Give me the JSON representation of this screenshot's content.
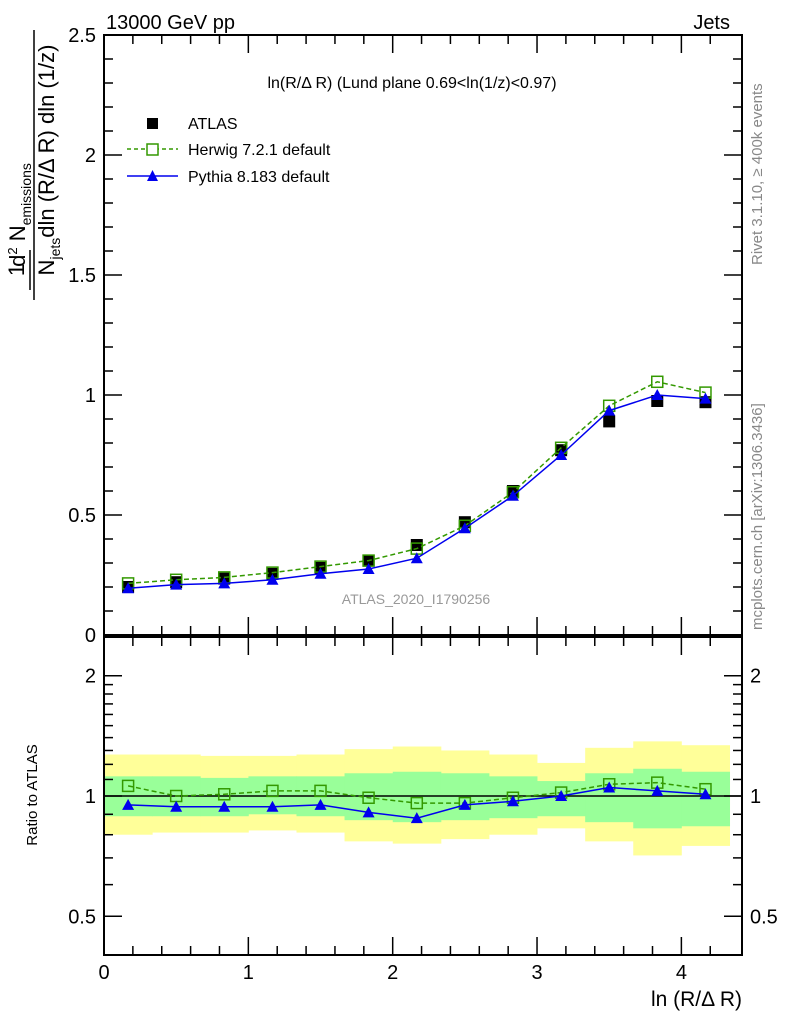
{
  "header": {
    "energy": "13000 GeV pp",
    "process": "Jets"
  },
  "side": {
    "rivet": "Rivet 3.1.10, ≥ 400k events",
    "mcplots": "mcplots.cern.ch [arXiv:1306.3436]"
  },
  "watermark": "ATLAS_2020_I1790256",
  "chart_data": [
    {
      "type": "line",
      "title": "ln(R/Δ R) (Lund plane 0.69<ln(1/z)<0.97)",
      "ylabel_parts": {
        "one": "1",
        "d2": "d",
        "two": "2",
        "N": "N",
        "emissions": "emissions",
        "Njets": "N",
        "jets": "jets",
        "denominator": "dln (R/Δ R) dln (1/z)"
      },
      "xlim": [
        0,
        4.42
      ],
      "ylim": [
        0,
        2.5
      ],
      "yticks": [
        "0",
        "0.5",
        "1",
        "1.5",
        "2",
        "2.5"
      ],
      "legend_position": "top-left",
      "x": [
        0.167,
        0.5,
        0.833,
        1.167,
        1.5,
        1.833,
        2.167,
        2.5,
        2.833,
        3.167,
        3.5,
        3.833,
        4.167
      ],
      "bin_edges": [
        0,
        4.333
      ],
      "series": [
        {
          "name": "ATLAS",
          "color": "#000000",
          "marker": "filled-square",
          "values": [
            0.2,
            0.22,
            0.235,
            0.255,
            0.28,
            0.31,
            0.375,
            0.47,
            0.6,
            0.77,
            0.89,
            0.975,
            0.97
          ]
        },
        {
          "name": "Herwig 7.2.1 default",
          "color": "#339900",
          "marker": "open-square",
          "dashed": true,
          "values": [
            0.215,
            0.23,
            0.24,
            0.26,
            0.285,
            0.31,
            0.36,
            0.455,
            0.595,
            0.78,
            0.955,
            1.055,
            1.01
          ]
        },
        {
          "name": "Pythia 8.183 default",
          "color": "#0000ee",
          "marker": "triangle",
          "values": [
            0.195,
            0.21,
            0.215,
            0.23,
            0.255,
            0.275,
            0.32,
            0.445,
            0.58,
            0.75,
            0.935,
            1.0,
            0.985
          ]
        }
      ]
    },
    {
      "type": "line",
      "ylabel": "Ratio to ATLAS",
      "xlabel": "ln (R/Δ R)",
      "yscale": "log",
      "ylim": [
        0.4,
        2.5
      ],
      "yticks": [
        "0.5",
        "1",
        "2"
      ],
      "xticks": [
        "0",
        "1",
        "2",
        "3",
        "4"
      ],
      "xlim": [
        0,
        4.42
      ],
      "bands": {
        "green_up": [
          1.12,
          1.12,
          1.11,
          1.12,
          1.12,
          1.14,
          1.15,
          1.14,
          1.12,
          1.09,
          1.14,
          1.17,
          1.15
        ],
        "green_down": [
          0.89,
          0.89,
          0.89,
          0.9,
          0.89,
          0.87,
          0.86,
          0.87,
          0.88,
          0.89,
          0.86,
          0.83,
          0.84
        ],
        "yellow_up": [
          1.27,
          1.27,
          1.26,
          1.26,
          1.27,
          1.31,
          1.33,
          1.3,
          1.27,
          1.21,
          1.32,
          1.37,
          1.34
        ],
        "yellow_down": [
          0.8,
          0.81,
          0.81,
          0.82,
          0.81,
          0.77,
          0.76,
          0.78,
          0.8,
          0.83,
          0.77,
          0.71,
          0.75
        ],
        "green_color": "#99ff99",
        "yellow_color": "#ffff99"
      },
      "series": [
        {
          "name": "Herwig 7.2.1 default",
          "color": "#339900",
          "values": [
            1.06,
            1.0,
            1.01,
            1.03,
            1.03,
            0.99,
            0.96,
            0.96,
            0.99,
            1.02,
            1.07,
            1.08,
            1.04
          ]
        },
        {
          "name": "Pythia 8.183 default",
          "color": "#0000ee",
          "values": [
            0.95,
            0.94,
            0.94,
            0.94,
            0.95,
            0.91,
            0.88,
            0.95,
            0.97,
            1.0,
            1.05,
            1.03,
            1.01
          ]
        }
      ]
    }
  ]
}
